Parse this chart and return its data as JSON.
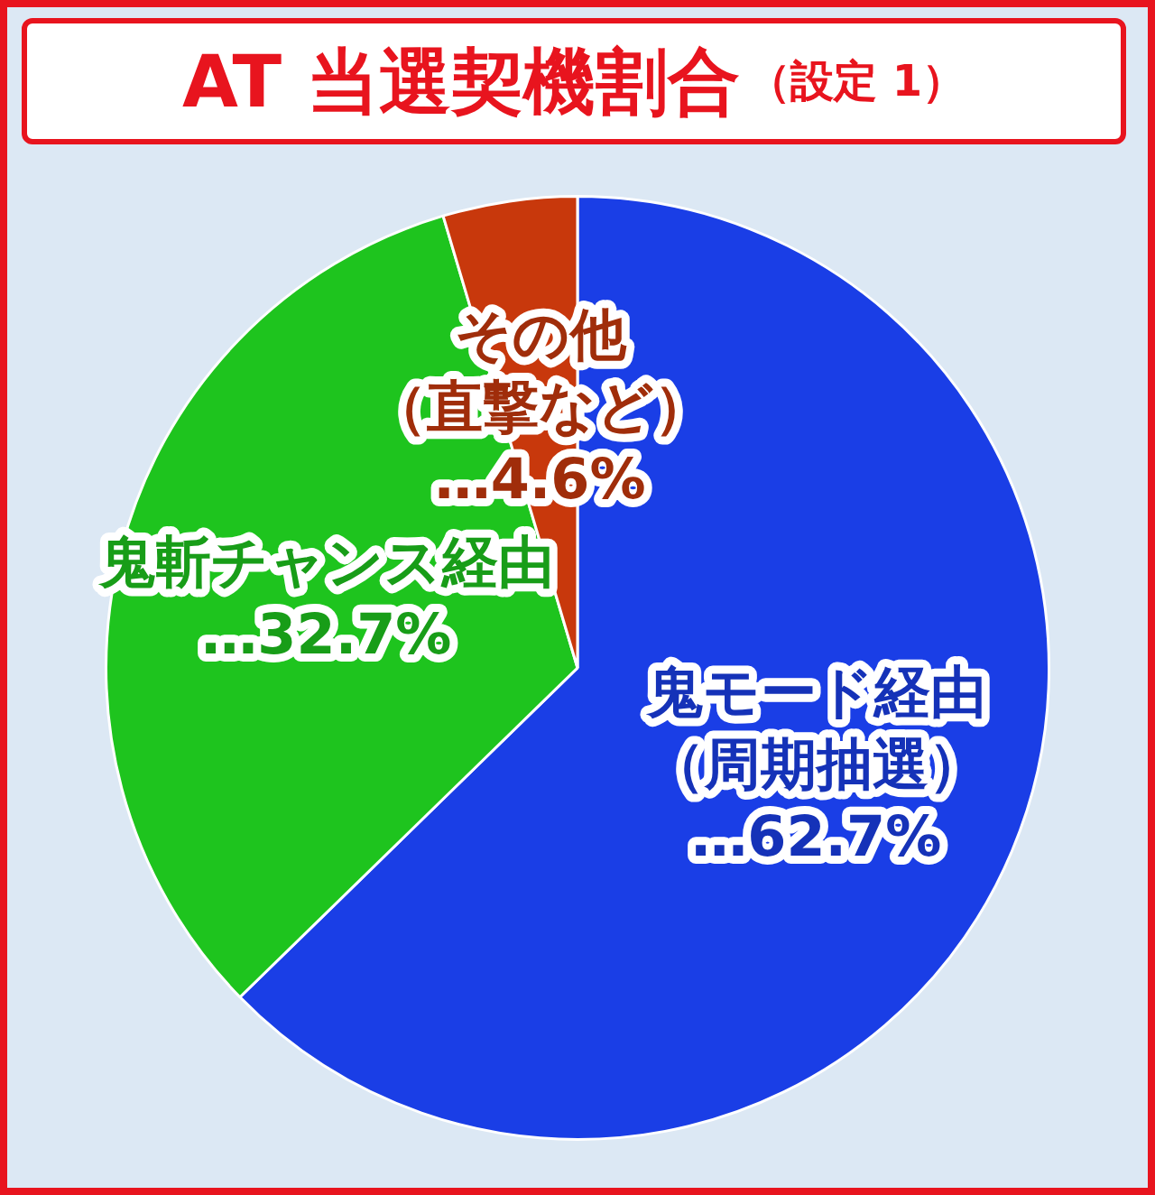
{
  "chart_data": {
    "type": "pie",
    "title": "AT 当選契機割合",
    "subtitle": "（設定 1）",
    "categories": [
      "鬼モード経由（周期抽選）",
      "鬼斬チャンス経由",
      "その他（直撃など）"
    ],
    "values": [
      62.7,
      32.7,
      4.6
    ],
    "colors": [
      "#1a3ee6",
      "#1ec41e",
      "#c8380c"
    ],
    "value_labels": [
      "…62.7%",
      "…32.7%",
      "…4.6%"
    ],
    "legend": false
  }
}
